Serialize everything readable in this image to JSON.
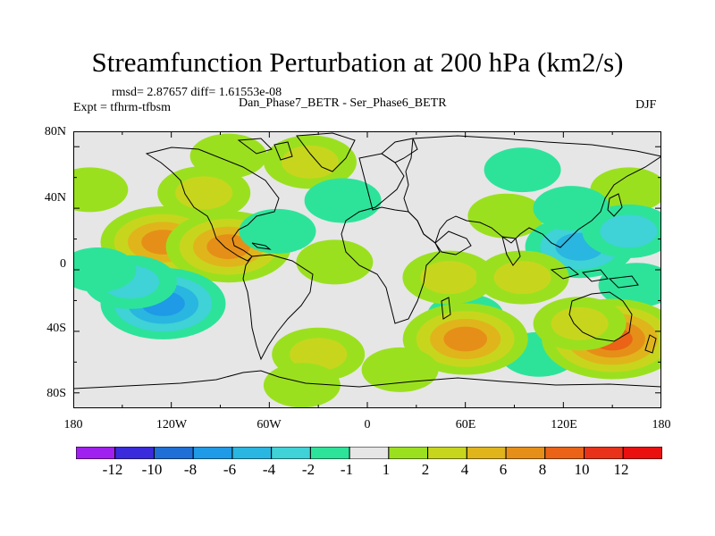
{
  "title": "Streamfunction Perturbation at 200 hPa (km2/s)",
  "stats": "rmsd= 2.87657 diff= 1.61553e-08",
  "experiment": "Expt = tfhrm-tfbsm",
  "case": "Dan_Phase7_BETR - Ser_Phase6_BETR",
  "season": "DJF",
  "lat_ticks": [
    "80N",
    "40N",
    "0",
    "40S",
    "80S"
  ],
  "lon_ticks": [
    "180",
    "120W",
    "60W",
    "0",
    "60E",
    "120E",
    "180"
  ],
  "colorbar": {
    "labels": [
      "-12",
      "-10",
      "-8",
      "-6",
      "-4",
      "-2",
      "-1",
      "1",
      "2",
      "4",
      "6",
      "8",
      "10",
      "12"
    ],
    "colors": [
      "#a020f0",
      "#3a2bdc",
      "#1f6fd6",
      "#1e9ae6",
      "#29b6e0",
      "#3fd2d6",
      "#2de39a",
      "#e6e6e6",
      "#9be01f",
      "#c7d61d",
      "#e0b51c",
      "#e68f18",
      "#ea6316",
      "#e8321a",
      "#ea1010"
    ]
  },
  "map": {
    "background_color": "#e6e6e6",
    "anomaly_centers": [
      {
        "lon": -125,
        "lat": 18,
        "level": 8
      },
      {
        "lon": -85,
        "lat": 15,
        "level": 8
      },
      {
        "lon": -100,
        "lat": 50,
        "level": 4
      },
      {
        "lon": -35,
        "lat": 70,
        "level": 4
      },
      {
        "lon": -85,
        "lat": 74,
        "level": 2
      },
      {
        "lon": -170,
        "lat": 52,
        "level": 2
      },
      {
        "lon": 85,
        "lat": 35,
        "level": 2
      },
      {
        "lon": 160,
        "lat": 52,
        "level": 2
      },
      {
        "lon": -125,
        "lat": -22,
        "level": -8
      },
      {
        "lon": -145,
        "lat": -8,
        "level": -4
      },
      {
        "lon": -165,
        "lat": 0,
        "level": -2
      },
      {
        "lon": -55,
        "lat": 25,
        "level": -2
      },
      {
        "lon": -15,
        "lat": 45,
        "level": -2
      },
      {
        "lon": 95,
        "lat": 65,
        "level": -2
      },
      {
        "lon": 130,
        "lat": 15,
        "level": -6
      },
      {
        "lon": 160,
        "lat": 25,
        "level": -4
      },
      {
        "lon": 125,
        "lat": 40,
        "level": -2
      },
      {
        "lon": 165,
        "lat": -10,
        "level": -2
      },
      {
        "lon": 105,
        "lat": -55,
        "level": -2
      },
      {
        "lon": 60,
        "lat": -30,
        "level": -2
      },
      {
        "lon": -20,
        "lat": 5,
        "level": 2
      },
      {
        "lon": 50,
        "lat": -5,
        "level": 4
      },
      {
        "lon": 95,
        "lat": -5,
        "level": 4
      },
      {
        "lon": 60,
        "lat": -45,
        "level": 8
      },
      {
        "lon": 150,
        "lat": -45,
        "level": 10
      },
      {
        "lon": 130,
        "lat": -35,
        "level": 4
      },
      {
        "lon": -30,
        "lat": -55,
        "level": 4
      },
      {
        "lon": -40,
        "lat": -75,
        "level": 2
      },
      {
        "lon": 20,
        "lat": -65,
        "level": 2
      }
    ]
  }
}
